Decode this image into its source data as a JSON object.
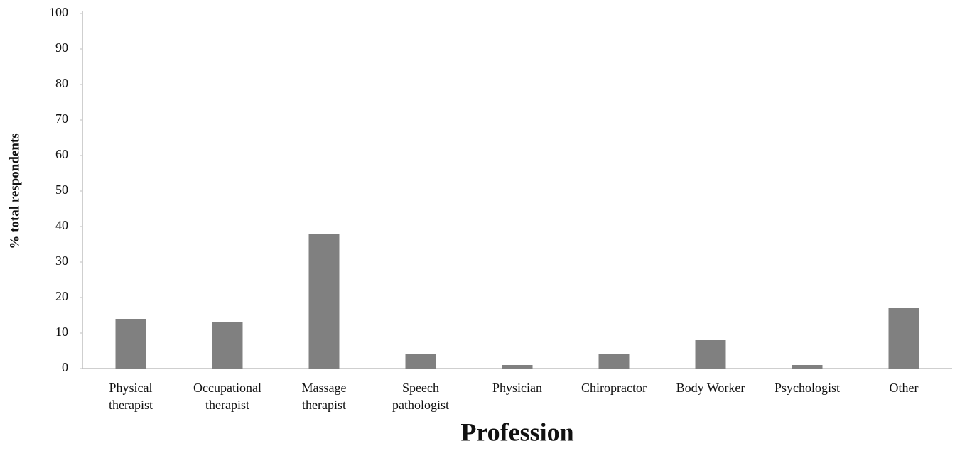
{
  "chart_data": {
    "type": "bar",
    "x_label": "Profession",
    "y_label": "% total respondents",
    "categories": [
      "Physical\ntherapist",
      "Occupational\ntherapist",
      "Massage\ntherapist",
      "Speech\npathologist",
      "Physician",
      "Chiropractor",
      "Body Worker",
      "Psychologist",
      "Other"
    ],
    "values": [
      14,
      13,
      38,
      4,
      1,
      4,
      8,
      1,
      17
    ],
    "color": "#808080",
    "ylim": [
      0,
      100
    ],
    "yticks": [
      0,
      10,
      20,
      30,
      40,
      50,
      60,
      70,
      80,
      90,
      100
    ],
    "grid": false
  }
}
